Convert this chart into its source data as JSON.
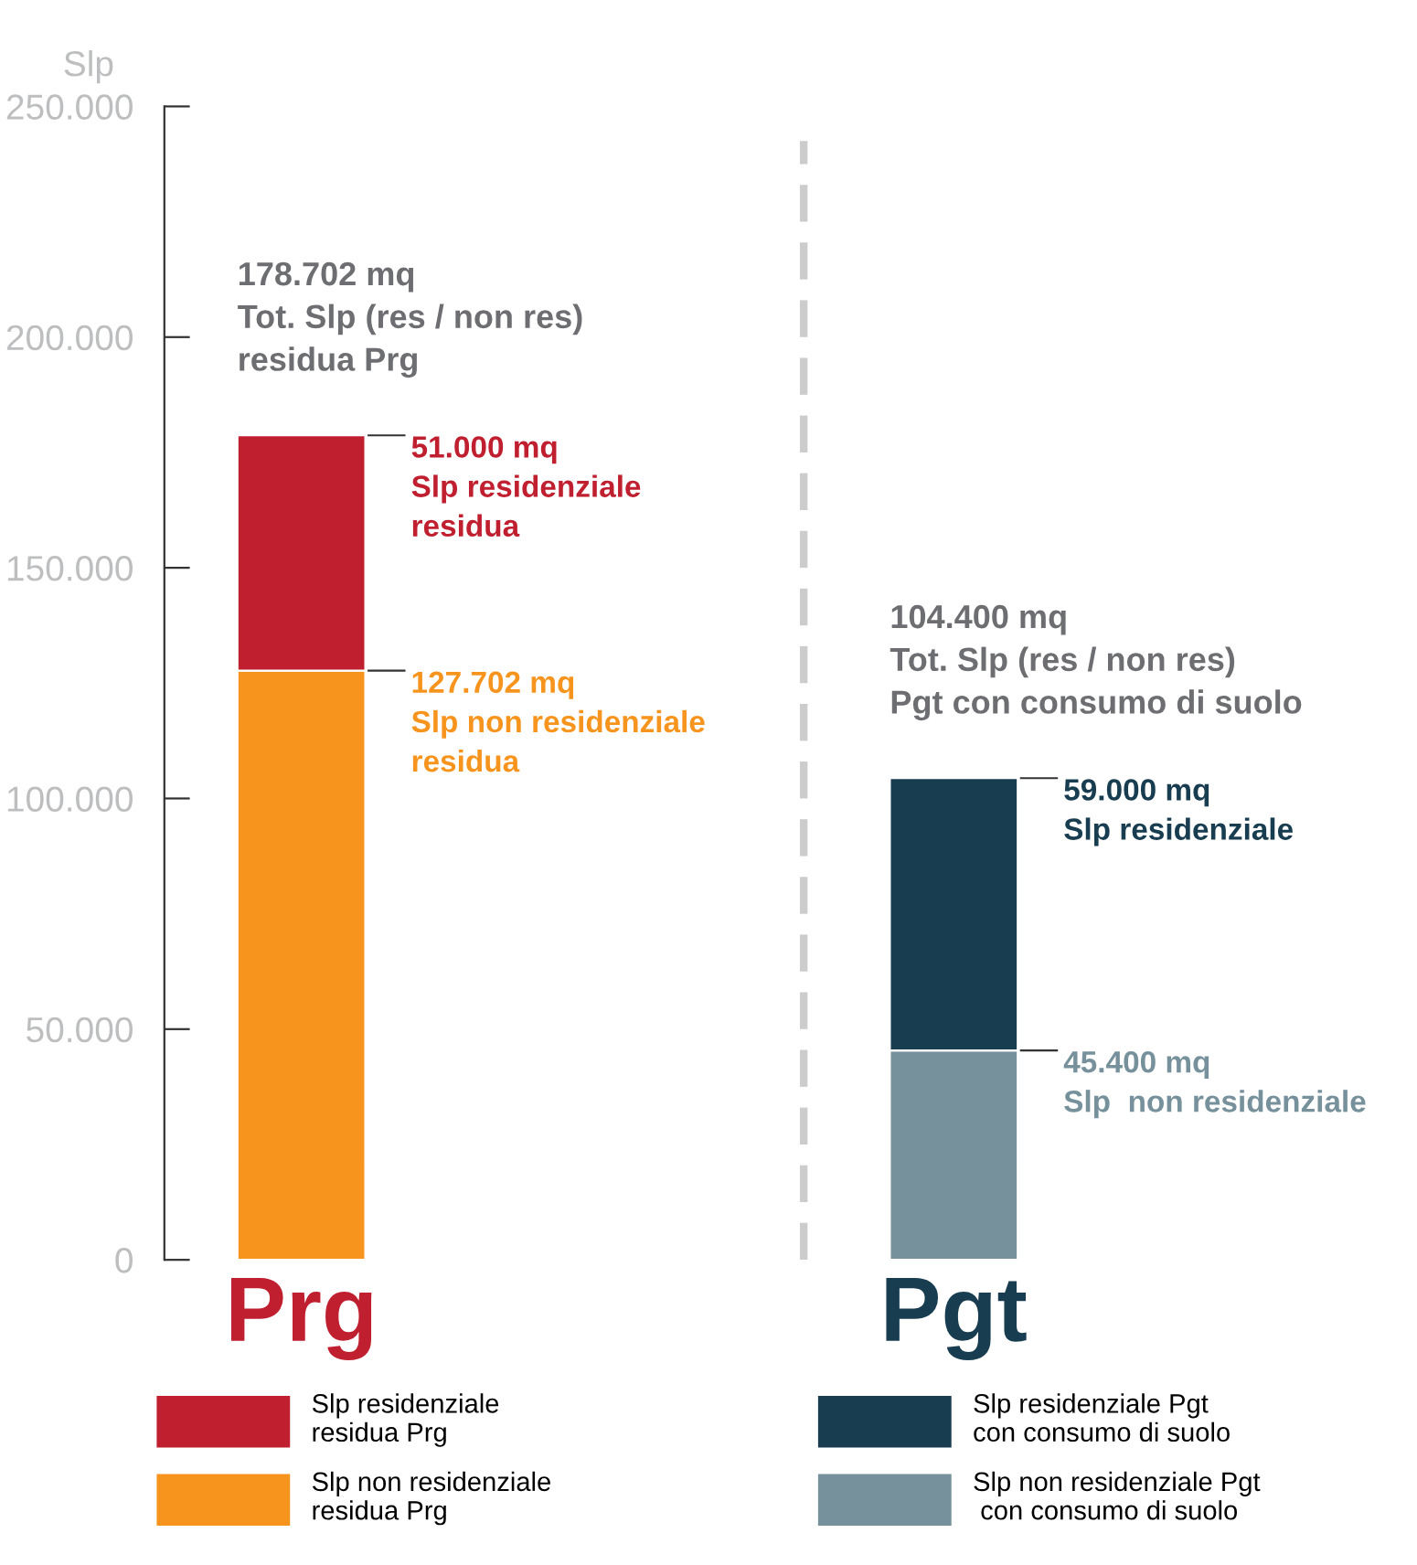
{
  "chart_data": {
    "type": "bar",
    "stacked": true,
    "ylabel": "Slp",
    "categories": [
      "Prg",
      "Pgt"
    ],
    "series": [
      {
        "name": "Slp non residenziale\nresidua Prg",
        "color": "#f7941d",
        "values": [
          127702,
          null
        ],
        "value_labels": [
          "127.702 mq\nSlp non residenziale\nresidua",
          null
        ]
      },
      {
        "name": "Slp residenziale\nresidua Prg",
        "color": "#c01f2f",
        "values": [
          51000,
          null
        ],
        "value_labels": [
          "51.000 mq\nSlp residenziale\nresidua",
          null
        ]
      },
      {
        "name": "Slp non residenziale Pgt\n con consumo di suolo",
        "color": "#76919b",
        "values": [
          null,
          45400
        ],
        "value_labels": [
          null,
          "45.400 mq\nSlp  non residenziale"
        ]
      },
      {
        "name": "Slp residenziale Pgt\ncon consumo di suolo",
        "color": "#193d50",
        "values": [
          null,
          59000
        ],
        "value_labels": [
          null,
          "59.000 mq\nSlp residenziale"
        ]
      }
    ],
    "totals": [
      "178.702 mq\nTot. Slp (res / non res)\nresidua Prg",
      "104.400 mq\nTot. Slp (res / non res)\nPgt con consumo di suolo"
    ],
    "ylim": [
      0,
      250000
    ],
    "yticks": [
      0,
      {
        "value": 50000,
        "label": "50.000"
      },
      {
        "value": 100000,
        "label": "100.000"
      },
      {
        "value": 150000,
        "label": "150.000"
      },
      {
        "value": 200000,
        "label": "200.000"
      },
      {
        "value": 250000,
        "label": "250.000"
      }
    ],
    "grid": false,
    "legend": "bottom"
  }
}
